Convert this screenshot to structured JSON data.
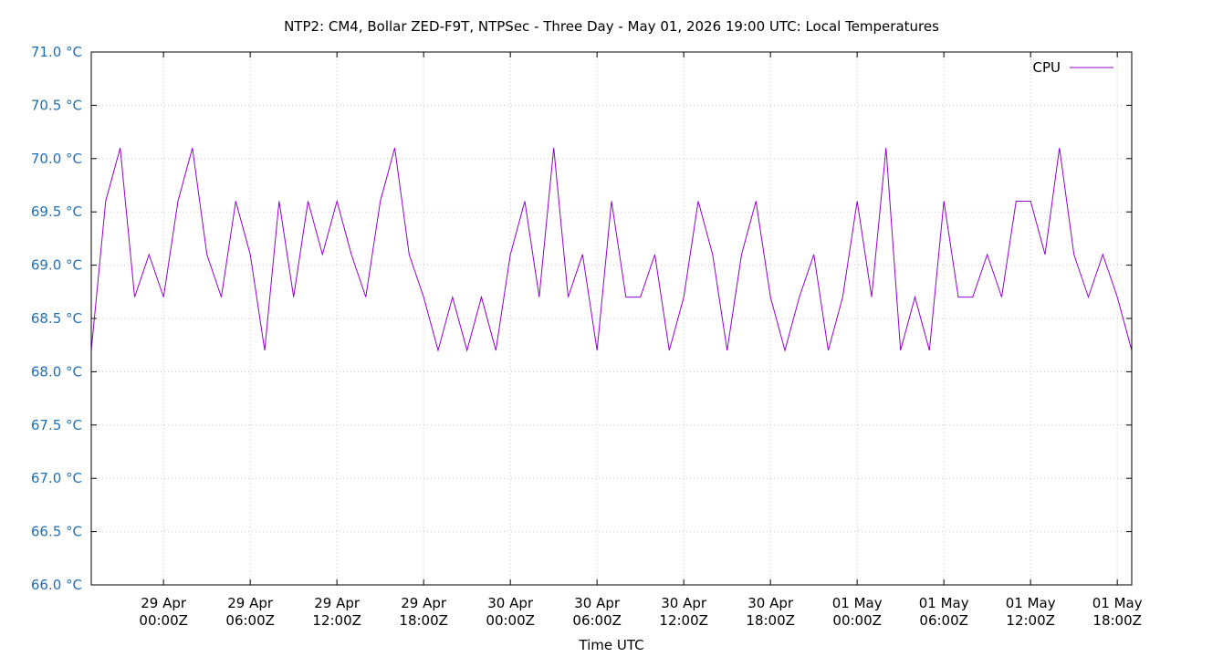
{
  "chart_data": {
    "type": "line",
    "title": "NTP2: CM4, Bollar ZED-F9T, NTPSec - Three Day - May 01, 2026 19:00 UTC: Local Temperatures",
    "xlabel": "Time UTC",
    "ylabel": "",
    "x_start": "2026-04-28 19:00",
    "x_end": "2026-05-01 19:00",
    "ylim": [
      66.0,
      71.0
    ],
    "yticks": [
      "66.0 °C",
      "66.5 °C",
      "67.0 °C",
      "67.5 °C",
      "68.0 °C",
      "68.5 °C",
      "69.0 °C",
      "69.5 °C",
      "70.0 °C",
      "70.5 °C",
      "71.0 °C"
    ],
    "xticks": [
      {
        "line1": "29 Apr",
        "line2": "00:00Z"
      },
      {
        "line1": "29 Apr",
        "line2": "06:00Z"
      },
      {
        "line1": "29 Apr",
        "line2": "12:00Z"
      },
      {
        "line1": "29 Apr",
        "line2": "18:00Z"
      },
      {
        "line1": "30 Apr",
        "line2": "00:00Z"
      },
      {
        "line1": "30 Apr",
        "line2": "06:00Z"
      },
      {
        "line1": "30 Apr",
        "line2": "12:00Z"
      },
      {
        "line1": "30 Apr",
        "line2": "18:00Z"
      },
      {
        "line1": "01 May",
        "line2": "00:00Z"
      },
      {
        "line1": "01 May",
        "line2": "06:00Z"
      },
      {
        "line1": "01 May",
        "line2": "12:00Z"
      },
      {
        "line1": "01 May",
        "line2": "18:00Z"
      }
    ],
    "grid": true,
    "legend_position": "top-right",
    "series": [
      {
        "name": "CPU",
        "color": "#9400d3",
        "sample_interval_hours": 1,
        "values": [
          68.2,
          69.6,
          70.1,
          68.7,
          69.1,
          68.7,
          69.6,
          70.1,
          69.1,
          68.7,
          69.6,
          69.1,
          68.2,
          69.6,
          68.7,
          69.6,
          69.1,
          69.6,
          69.1,
          68.7,
          69.6,
          70.1,
          69.1,
          68.7,
          68.2,
          68.7,
          68.2,
          68.7,
          68.2,
          69.1,
          69.6,
          68.7,
          70.1,
          68.7,
          69.1,
          68.2,
          69.6,
          68.7,
          68.7,
          69.1,
          68.2,
          68.7,
          69.6,
          69.1,
          68.2,
          69.1,
          69.6,
          68.7,
          68.2,
          68.7,
          69.1,
          68.2,
          68.7,
          69.6,
          68.7,
          70.1,
          68.2,
          68.7,
          68.2,
          69.6,
          68.7,
          68.7,
          69.1,
          68.7,
          69.6,
          69.6,
          69.1,
          70.1,
          69.1,
          68.7,
          69.1,
          68.7,
          68.2
        ]
      }
    ]
  }
}
